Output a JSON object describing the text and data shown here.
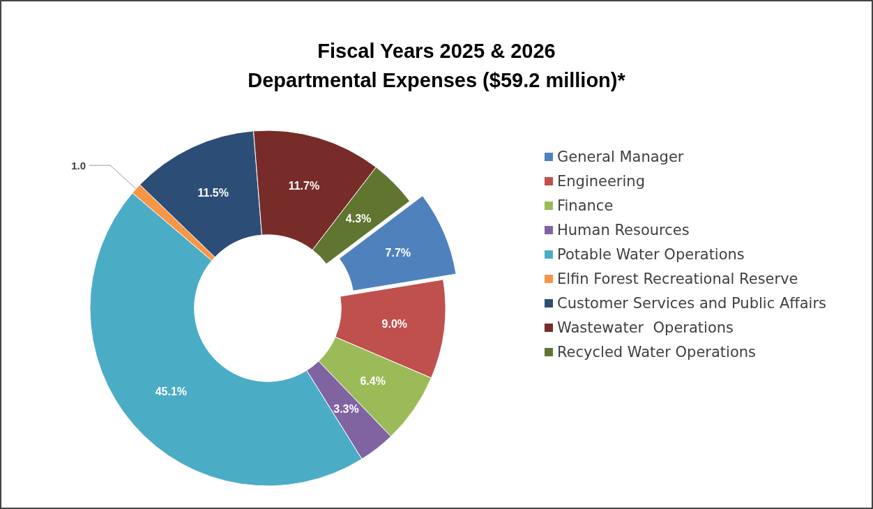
{
  "chart_data": {
    "type": "donut",
    "title": "Fiscal Years 2025 & 2026\nDepartmental Expenses ($59.2 million)*",
    "categories": [
      "General Manager",
      "Engineering",
      "Finance",
      "Human Resources",
      "Potable Water Operations",
      "Elfin Forest Recreational Reserve",
      "Customer Services and Public Affairs",
      "Wastewater  Operations",
      "Recycled Water Operations"
    ],
    "values": [
      7.7,
      9.0,
      6.4,
      3.3,
      45.1,
      1.0,
      11.5,
      11.7,
      4.3
    ],
    "value_labels": [
      "7.7%",
      "9.0%",
      "6.4%",
      "3.3%",
      "45.1%",
      "1.0",
      "11.5%",
      "11.7%",
      "4.3%"
    ],
    "colors": [
      "#4f81bd",
      "#c0504d",
      "#9bbb59",
      "#8064a2",
      "#4bacc6",
      "#f79646",
      "#2c4d75",
      "#772c2a",
      "#5f7530"
    ],
    "legend": "right"
  }
}
